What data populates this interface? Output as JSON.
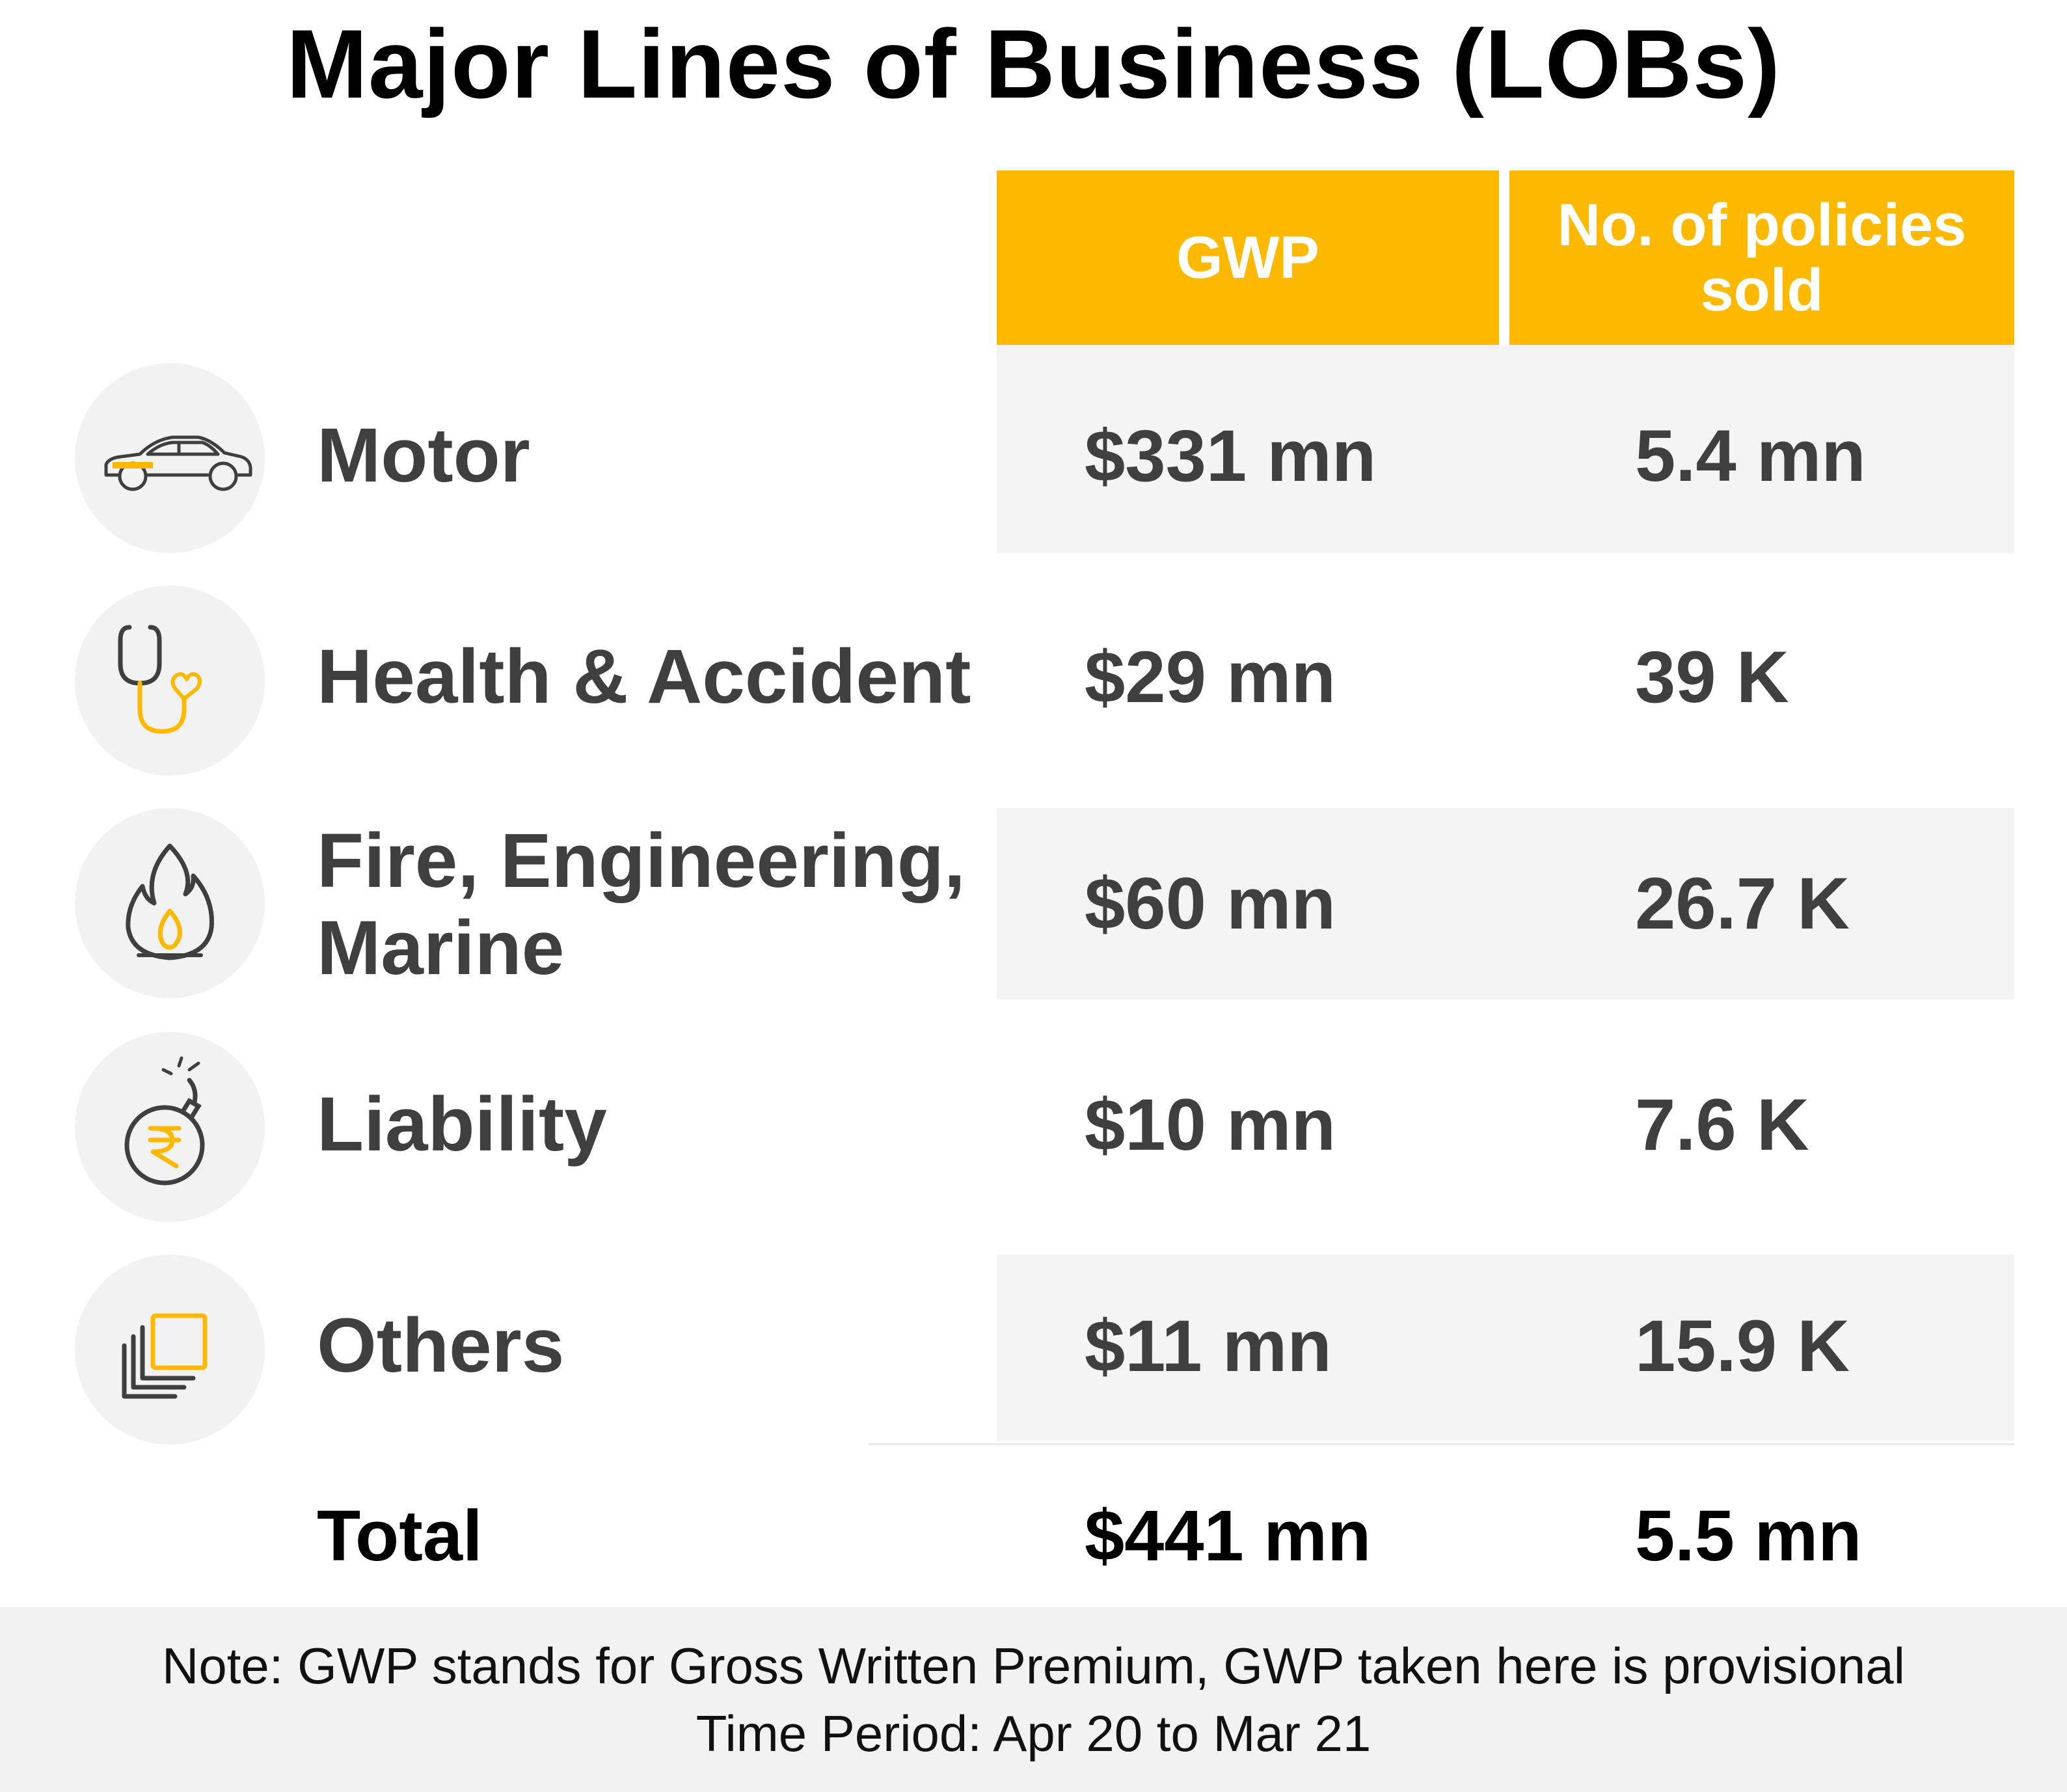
{
  "title": "Major Lines of Business (LOBs)",
  "headers": {
    "gwp": "GWP",
    "policies": "No. of policies sold"
  },
  "rows": [
    {
      "label": "Motor",
      "icon": "car-icon",
      "gwp": "$331 mn",
      "policies": "5.4 mn",
      "shaded": true
    },
    {
      "label": "Health & Accident",
      "icon": "stethoscope-icon",
      "gwp": "$29 mn",
      "policies": "39 K",
      "shaded": false
    },
    {
      "label": "Fire, Engineering, Marine",
      "icon": "flame-icon",
      "gwp": "$60 mn",
      "policies": "26.7 K",
      "shaded": true
    },
    {
      "label": "Liability",
      "icon": "rupee-bomb-icon",
      "gwp": "$10 mn",
      "policies": "7.6 K",
      "shaded": false
    },
    {
      "label": "Others",
      "icon": "stacked-squares-icon",
      "gwp": "$11 mn",
      "policies": "15.9 K",
      "shaded": true
    }
  ],
  "total": {
    "label": "Total",
    "gwp": "$441 mn",
    "policies": "5.5 mn"
  },
  "note": {
    "line1": "Note: GWP stands for Gross Written Premium, GWP taken here is provisional",
    "line2": "Time Period: Apr 20 to Mar 21"
  },
  "colors": {
    "accent": "#FDB900",
    "text": "#3F3F3F",
    "band": "#F4F4F4",
    "icon_circle": "#F2F2F2"
  },
  "chart_data": {
    "type": "table",
    "title": "Major Lines of Business (LOBs)",
    "columns": [
      "GWP",
      "No. of policies sold"
    ],
    "rows": [
      {
        "category": "Motor",
        "gwp_usd_mn": 331,
        "policies": 5400000
      },
      {
        "category": "Health & Accident",
        "gwp_usd_mn": 29,
        "policies": 39000
      },
      {
        "category": "Fire, Engineering, Marine",
        "gwp_usd_mn": 60,
        "policies": 26700
      },
      {
        "category": "Liability",
        "gwp_usd_mn": 10,
        "policies": 7600
      },
      {
        "category": "Others",
        "gwp_usd_mn": 11,
        "policies": 15900
      }
    ],
    "total": {
      "category": "Total",
      "gwp_usd_mn": 441,
      "policies": 5500000
    }
  }
}
